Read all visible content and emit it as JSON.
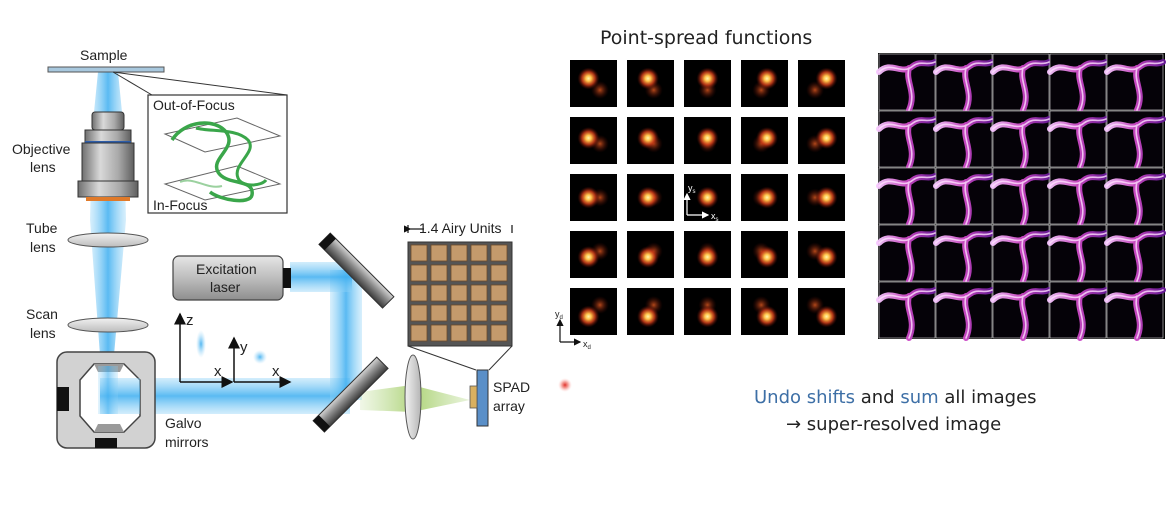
{
  "diagram": {
    "labels": {
      "sample": "Sample",
      "out_of_focus": "Out-of-Focus",
      "in_focus": "In-Focus",
      "objective_1": "Objective",
      "objective_2": "lens",
      "tube_1": "Tube",
      "tube_2": "lens",
      "scan_1": "Scan",
      "scan_2": "lens",
      "excitation_1": "Excitation",
      "excitation_2": "laser",
      "galvo_1": "Galvo",
      "galvo_2": "mirrors",
      "airy": "1.4 Airy Units",
      "spad_1": "SPAD",
      "spad_2": "array",
      "axis_z": "z",
      "axis_x1": "x",
      "axis_y": "y",
      "axis_x2": "x"
    },
    "psf_title": "Point-spread functions",
    "psf_axes": {
      "ys": "y",
      "ys_sub": "s",
      "xs": "x",
      "xs_sub": "s",
      "yd": "y",
      "yd_sub": "d",
      "xd": "x",
      "xd_sub": "d"
    },
    "caption": {
      "line1_a": "Undo shifts",
      "line1_b": " and ",
      "line1_c": "sum",
      "line1_d": " all images",
      "line2": "→ super-resolved image"
    },
    "colors": {
      "beam": "#5ab8ee",
      "accent_text": "#3d6fa6",
      "spad_cell": "#c49a6c",
      "psf_bg": "#000000",
      "psf_glow": "#ffd060",
      "filament": "#d44fd0"
    }
  }
}
